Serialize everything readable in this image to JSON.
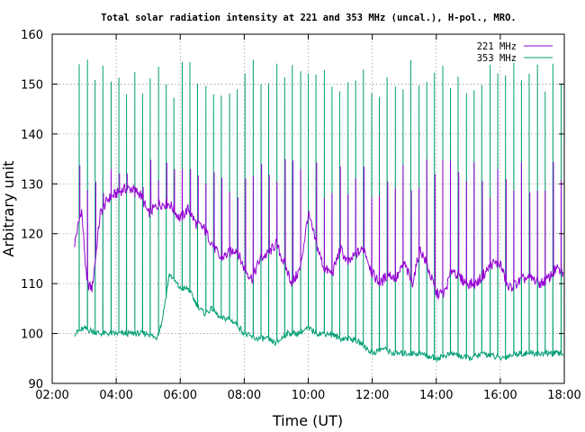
{
  "chart_data": {
    "type": "line",
    "title": "Total solar radiation intensity at 221 and 353 MHz (uncal.), H-pol., MRO.",
    "xlabel": "Time (UT)",
    "ylabel": "Arbitrary unit",
    "xlim": [
      "02:00",
      "18:00"
    ],
    "ylim": [
      90,
      160
    ],
    "xticks": [
      "02:00",
      "04:00",
      "06:00",
      "08:00",
      "10:00",
      "12:00",
      "14:00",
      "16:00",
      "18:00"
    ],
    "yticks": [
      90,
      100,
      110,
      120,
      130,
      140,
      150,
      160
    ],
    "grid": true,
    "legend_position": "top-right",
    "series": [
      {
        "name": "221 MHz",
        "color": "#9400d3",
        "x": [
          "02:42",
          "02:55",
          "03:05",
          "03:15",
          "03:30",
          "03:45",
          "04:00",
          "04:15",
          "04:30",
          "04:45",
          "05:00",
          "05:20",
          "05:40",
          "06:00",
          "06:15",
          "06:30",
          "06:45",
          "07:00",
          "07:15",
          "07:30",
          "07:45",
          "08:00",
          "08:15",
          "08:30",
          "08:45",
          "09:00",
          "09:15",
          "09:30",
          "09:45",
          "10:00",
          "10:15",
          "10:30",
          "10:45",
          "11:00",
          "11:15",
          "11:30",
          "11:45",
          "12:00",
          "12:15",
          "12:30",
          "12:45",
          "13:00",
          "13:15",
          "13:30",
          "13:45",
          "14:00",
          "14:15",
          "14:30",
          "14:45",
          "15:00",
          "15:15",
          "15:30",
          "15:45",
          "16:00",
          "16:15",
          "16:30",
          "16:45",
          "17:00",
          "17:15",
          "17:30",
          "17:45",
          "17:58"
        ],
        "y": [
          118,
          125,
          110,
          109,
          124,
          127,
          128,
          129,
          129,
          128,
          124,
          126,
          126,
          123,
          125,
          122,
          121,
          118,
          115,
          116,
          117,
          113,
          111,
          115,
          116,
          118,
          114,
          110,
          113,
          124,
          118,
          113,
          112,
          117,
          114,
          116,
          117,
          112,
          110,
          112,
          111,
          114,
          110,
          117,
          113,
          108,
          108,
          113,
          111,
          110,
          110,
          112,
          114,
          114,
          109,
          110,
          111,
          111,
          110,
          111,
          113,
          112
        ],
        "spikes_to": 131
      },
      {
        "name": "353 MHz",
        "color": "#009e73",
        "x": [
          "02:42",
          "03:00",
          "03:30",
          "04:00",
          "04:30",
          "05:00",
          "05:15",
          "05:25",
          "05:40",
          "06:00",
          "06:15",
          "06:30",
          "06:45",
          "07:00",
          "07:15",
          "07:30",
          "07:45",
          "08:00",
          "08:20",
          "08:40",
          "09:00",
          "09:20",
          "09:40",
          "10:00",
          "10:20",
          "10:40",
          "11:00",
          "11:20",
          "11:40",
          "12:00",
          "12:20",
          "12:40",
          "13:00",
          "13:30",
          "14:00",
          "14:30",
          "15:00",
          "15:30",
          "16:00",
          "16:30",
          "17:00",
          "17:30",
          "17:58"
        ],
        "y": [
          100,
          101,
          100,
          100,
          100,
          100,
          99,
          102,
          112,
          109,
          109,
          106,
          104,
          105,
          103,
          103,
          102,
          100,
          99,
          99,
          98,
          100,
          100,
          101,
          100,
          100,
          99,
          99,
          98,
          96,
          97,
          96,
          96,
          96,
          95,
          96,
          95,
          96,
          95,
          96,
          96,
          96,
          96
        ],
        "spikes_to": 151
      }
    ]
  }
}
